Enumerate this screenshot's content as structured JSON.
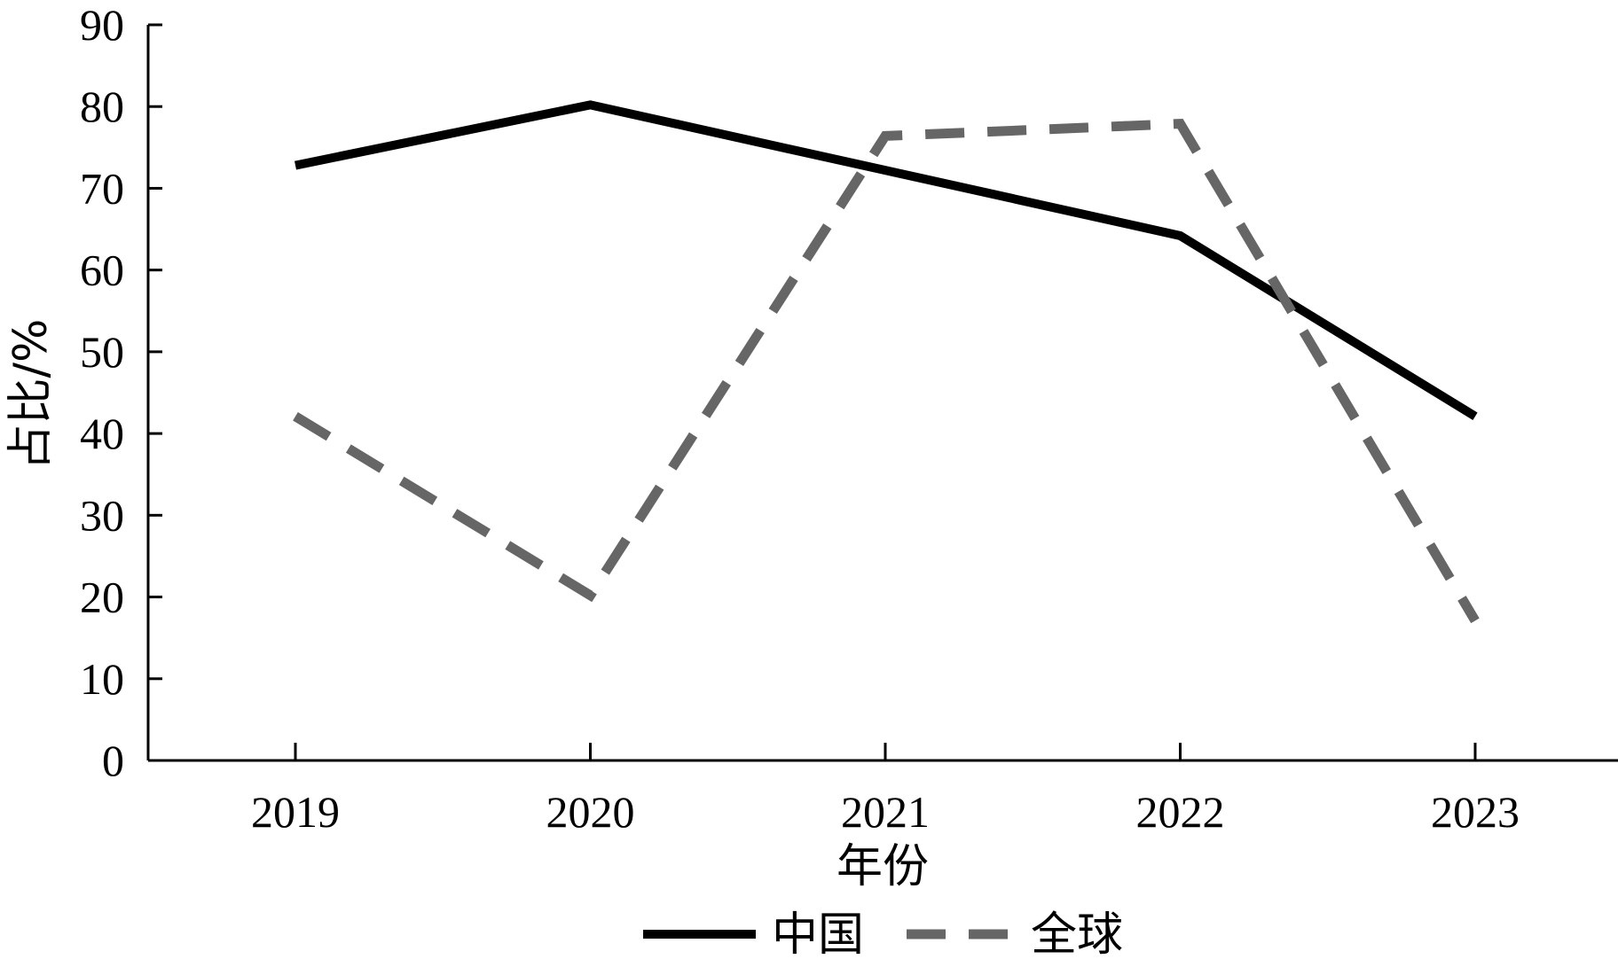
{
  "chart_data": {
    "type": "line",
    "title": "",
    "xlabel": "年份",
    "ylabel": "占比/%",
    "categories": [
      "2019",
      "2020",
      "2021",
      "2022",
      "2023"
    ],
    "ylim": [
      0,
      90
    ],
    "yticks": [
      0,
      10,
      20,
      30,
      40,
      50,
      60,
      70,
      80,
      90
    ],
    "grid": false,
    "legend_position": "bottom",
    "series": [
      {
        "name": "中国",
        "values": [
          72.8,
          80.2,
          72.2,
          64.2,
          42.1
        ],
        "color": "#000000",
        "style": "solid"
      },
      {
        "name": "全球",
        "values": [
          42.1,
          20.2,
          76.4,
          77.9,
          17.1
        ],
        "color": "#666666",
        "style": "dashed"
      }
    ]
  }
}
